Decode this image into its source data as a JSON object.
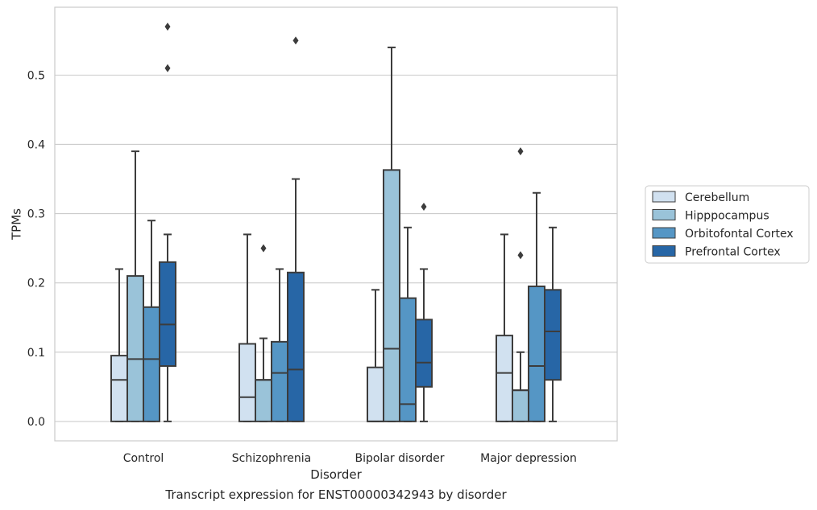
{
  "caption": "Transcript expression for ENST00000342943 by disorder",
  "chart_data": {
    "type": "box",
    "xlabel": "Disorder",
    "ylabel": "TPMs",
    "ylim": [
      -0.028,
      0.598
    ],
    "yticks": [
      "0.0",
      "0.1",
      "0.2",
      "0.3",
      "0.4",
      "0.5"
    ],
    "ytick_values": [
      0.0,
      0.1,
      0.2,
      0.3,
      0.4,
      0.5
    ],
    "grid": "horizontal",
    "legend_position": "right",
    "categories": [
      "Control",
      "Schizophrenia",
      "Bipolar disorder",
      "Major depression"
    ],
    "series": [
      {
        "name": "Cerebellum",
        "color": "#d1e1f0",
        "boxes": [
          {
            "whisker_low": 0.0,
            "q1": 0.0,
            "median": 0.06,
            "q3": 0.095,
            "whisker_high": 0.22,
            "outliers": []
          },
          {
            "whisker_low": 0.0,
            "q1": 0.0,
            "median": 0.035,
            "q3": 0.112,
            "whisker_high": 0.27,
            "outliers": []
          },
          {
            "whisker_low": 0.0,
            "q1": 0.0,
            "median": 0.0,
            "q3": 0.078,
            "whisker_high": 0.19,
            "outliers": []
          },
          {
            "whisker_low": 0.0,
            "q1": 0.0,
            "median": 0.07,
            "q3": 0.124,
            "whisker_high": 0.27,
            "outliers": []
          }
        ]
      },
      {
        "name": "Hipppocampus",
        "color": "#9ac3d9",
        "boxes": [
          {
            "whisker_low": 0.0,
            "q1": 0.0,
            "median": 0.09,
            "q3": 0.21,
            "whisker_high": 0.39,
            "outliers": []
          },
          {
            "whisker_low": 0.0,
            "q1": 0.0,
            "median": 0.06,
            "q3": 0.06,
            "whisker_high": 0.12,
            "outliers": [
              0.25
            ]
          },
          {
            "whisker_low": 0.0,
            "q1": 0.0,
            "median": 0.105,
            "q3": 0.363,
            "whisker_high": 0.54,
            "outliers": []
          },
          {
            "whisker_low": 0.0,
            "q1": 0.0,
            "median": 0.045,
            "q3": 0.045,
            "whisker_high": 0.1,
            "outliers": [
              0.24,
              0.39
            ]
          }
        ]
      },
      {
        "name": "Orbitofontal Cortex",
        "color": "#5596c5",
        "boxes": [
          {
            "whisker_low": 0.0,
            "q1": 0.0,
            "median": 0.09,
            "q3": 0.165,
            "whisker_high": 0.29,
            "outliers": []
          },
          {
            "whisker_low": 0.0,
            "q1": 0.0,
            "median": 0.07,
            "q3": 0.115,
            "whisker_high": 0.22,
            "outliers": []
          },
          {
            "whisker_low": 0.0,
            "q1": 0.0,
            "median": 0.025,
            "q3": 0.178,
            "whisker_high": 0.28,
            "outliers": []
          },
          {
            "whisker_low": 0.0,
            "q1": 0.0,
            "median": 0.08,
            "q3": 0.195,
            "whisker_high": 0.33,
            "outliers": []
          }
        ]
      },
      {
        "name": "Prefrontal Cortex",
        "color": "#2766a6",
        "boxes": [
          {
            "whisker_low": 0.0,
            "q1": 0.08,
            "median": 0.14,
            "q3": 0.23,
            "whisker_high": 0.27,
            "outliers": [
              0.51,
              0.57
            ]
          },
          {
            "whisker_low": 0.0,
            "q1": 0.0,
            "median": 0.075,
            "q3": 0.215,
            "whisker_high": 0.35,
            "outliers": [
              0.55
            ]
          },
          {
            "whisker_low": 0.0,
            "q1": 0.05,
            "median": 0.085,
            "q3": 0.147,
            "whisker_high": 0.22,
            "outliers": [
              0.31
            ]
          },
          {
            "whisker_low": 0.0,
            "q1": 0.06,
            "median": 0.13,
            "q3": 0.19,
            "whisker_high": 0.28,
            "outliers": []
          }
        ]
      }
    ]
  }
}
